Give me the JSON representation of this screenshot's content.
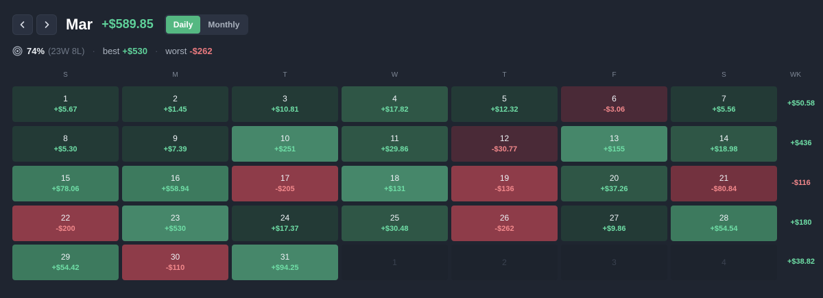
{
  "header": {
    "month": "Mar",
    "total": "+$589.85",
    "toggle": {
      "daily": "Daily",
      "monthly": "Monthly",
      "selected": "Daily"
    },
    "prev_icon": "chevron-left-icon",
    "next_icon": "chevron-right-icon"
  },
  "stats": {
    "icon": "target-icon",
    "win_rate": "74%",
    "record": "(23W 8L)",
    "best_label": "best",
    "best_value": "+$530",
    "worst_label": "worst",
    "worst_value": "-$262"
  },
  "weekdays": [
    "S",
    "M",
    "T",
    "W",
    "T",
    "F",
    "S"
  ],
  "week_header": "WK",
  "colors": {
    "positive_text": "#6fdea6",
    "negative_text": "#f2888b",
    "accent": "#55b882"
  },
  "days": [
    {
      "day": "1",
      "pnl": "+$5.67",
      "sign": "pos",
      "level": 1
    },
    {
      "day": "2",
      "pnl": "+$1.45",
      "sign": "pos",
      "level": 1
    },
    {
      "day": "3",
      "pnl": "+$10.81",
      "sign": "pos",
      "level": 1
    },
    {
      "day": "4",
      "pnl": "+$17.82",
      "sign": "pos",
      "level": 2
    },
    {
      "day": "5",
      "pnl": "+$12.32",
      "sign": "pos",
      "level": 1
    },
    {
      "day": "6",
      "pnl": "-$3.06",
      "sign": "neg",
      "level": 1
    },
    {
      "day": "7",
      "pnl": "+$5.56",
      "sign": "pos",
      "level": 1
    },
    {
      "day": "8",
      "pnl": "+$5.30",
      "sign": "pos",
      "level": 1
    },
    {
      "day": "9",
      "pnl": "+$7.39",
      "sign": "pos",
      "level": 1
    },
    {
      "day": "10",
      "pnl": "+$251",
      "sign": "pos",
      "level": 4
    },
    {
      "day": "11",
      "pnl": "+$29.86",
      "sign": "pos",
      "level": 2
    },
    {
      "day": "12",
      "pnl": "-$30.77",
      "sign": "neg",
      "level": 1
    },
    {
      "day": "13",
      "pnl": "+$155",
      "sign": "pos",
      "level": 4
    },
    {
      "day": "14",
      "pnl": "+$18.98",
      "sign": "pos",
      "level": 2
    },
    {
      "day": "15",
      "pnl": "+$78.06",
      "sign": "pos",
      "level": 3
    },
    {
      "day": "16",
      "pnl": "+$58.94",
      "sign": "pos",
      "level": 3
    },
    {
      "day": "17",
      "pnl": "-$205",
      "sign": "neg",
      "level": 4
    },
    {
      "day": "18",
      "pnl": "+$131",
      "sign": "pos",
      "level": 4
    },
    {
      "day": "19",
      "pnl": "-$136",
      "sign": "neg",
      "level": 4
    },
    {
      "day": "20",
      "pnl": "+$37.26",
      "sign": "pos",
      "level": 2
    },
    {
      "day": "21",
      "pnl": "-$80.84",
      "sign": "neg",
      "level": 3
    },
    {
      "day": "22",
      "pnl": "-$200",
      "sign": "neg",
      "level": 4
    },
    {
      "day": "23",
      "pnl": "+$530",
      "sign": "pos",
      "level": 4
    },
    {
      "day": "24",
      "pnl": "+$17.37",
      "sign": "pos",
      "level": 1
    },
    {
      "day": "25",
      "pnl": "+$30.48",
      "sign": "pos",
      "level": 2
    },
    {
      "day": "26",
      "pnl": "-$262",
      "sign": "neg",
      "level": 4
    },
    {
      "day": "27",
      "pnl": "+$9.86",
      "sign": "pos",
      "level": 1
    },
    {
      "day": "28",
      "pnl": "+$54.54",
      "sign": "pos",
      "level": 3
    },
    {
      "day": "29",
      "pnl": "+$54.42",
      "sign": "pos",
      "level": 3
    },
    {
      "day": "30",
      "pnl": "-$110",
      "sign": "neg",
      "level": 4
    },
    {
      "day": "31",
      "pnl": "+$94.25",
      "sign": "pos",
      "level": 4
    }
  ],
  "next_month_days": [
    "1",
    "2",
    "3",
    "4"
  ],
  "weekly": [
    {
      "value": "+$50.58",
      "sign": "pos"
    },
    {
      "value": "+$436",
      "sign": "pos"
    },
    {
      "value": "-$116",
      "sign": "neg"
    },
    {
      "value": "+$180",
      "sign": "pos"
    },
    {
      "value": "+$38.82",
      "sign": "pos"
    }
  ]
}
